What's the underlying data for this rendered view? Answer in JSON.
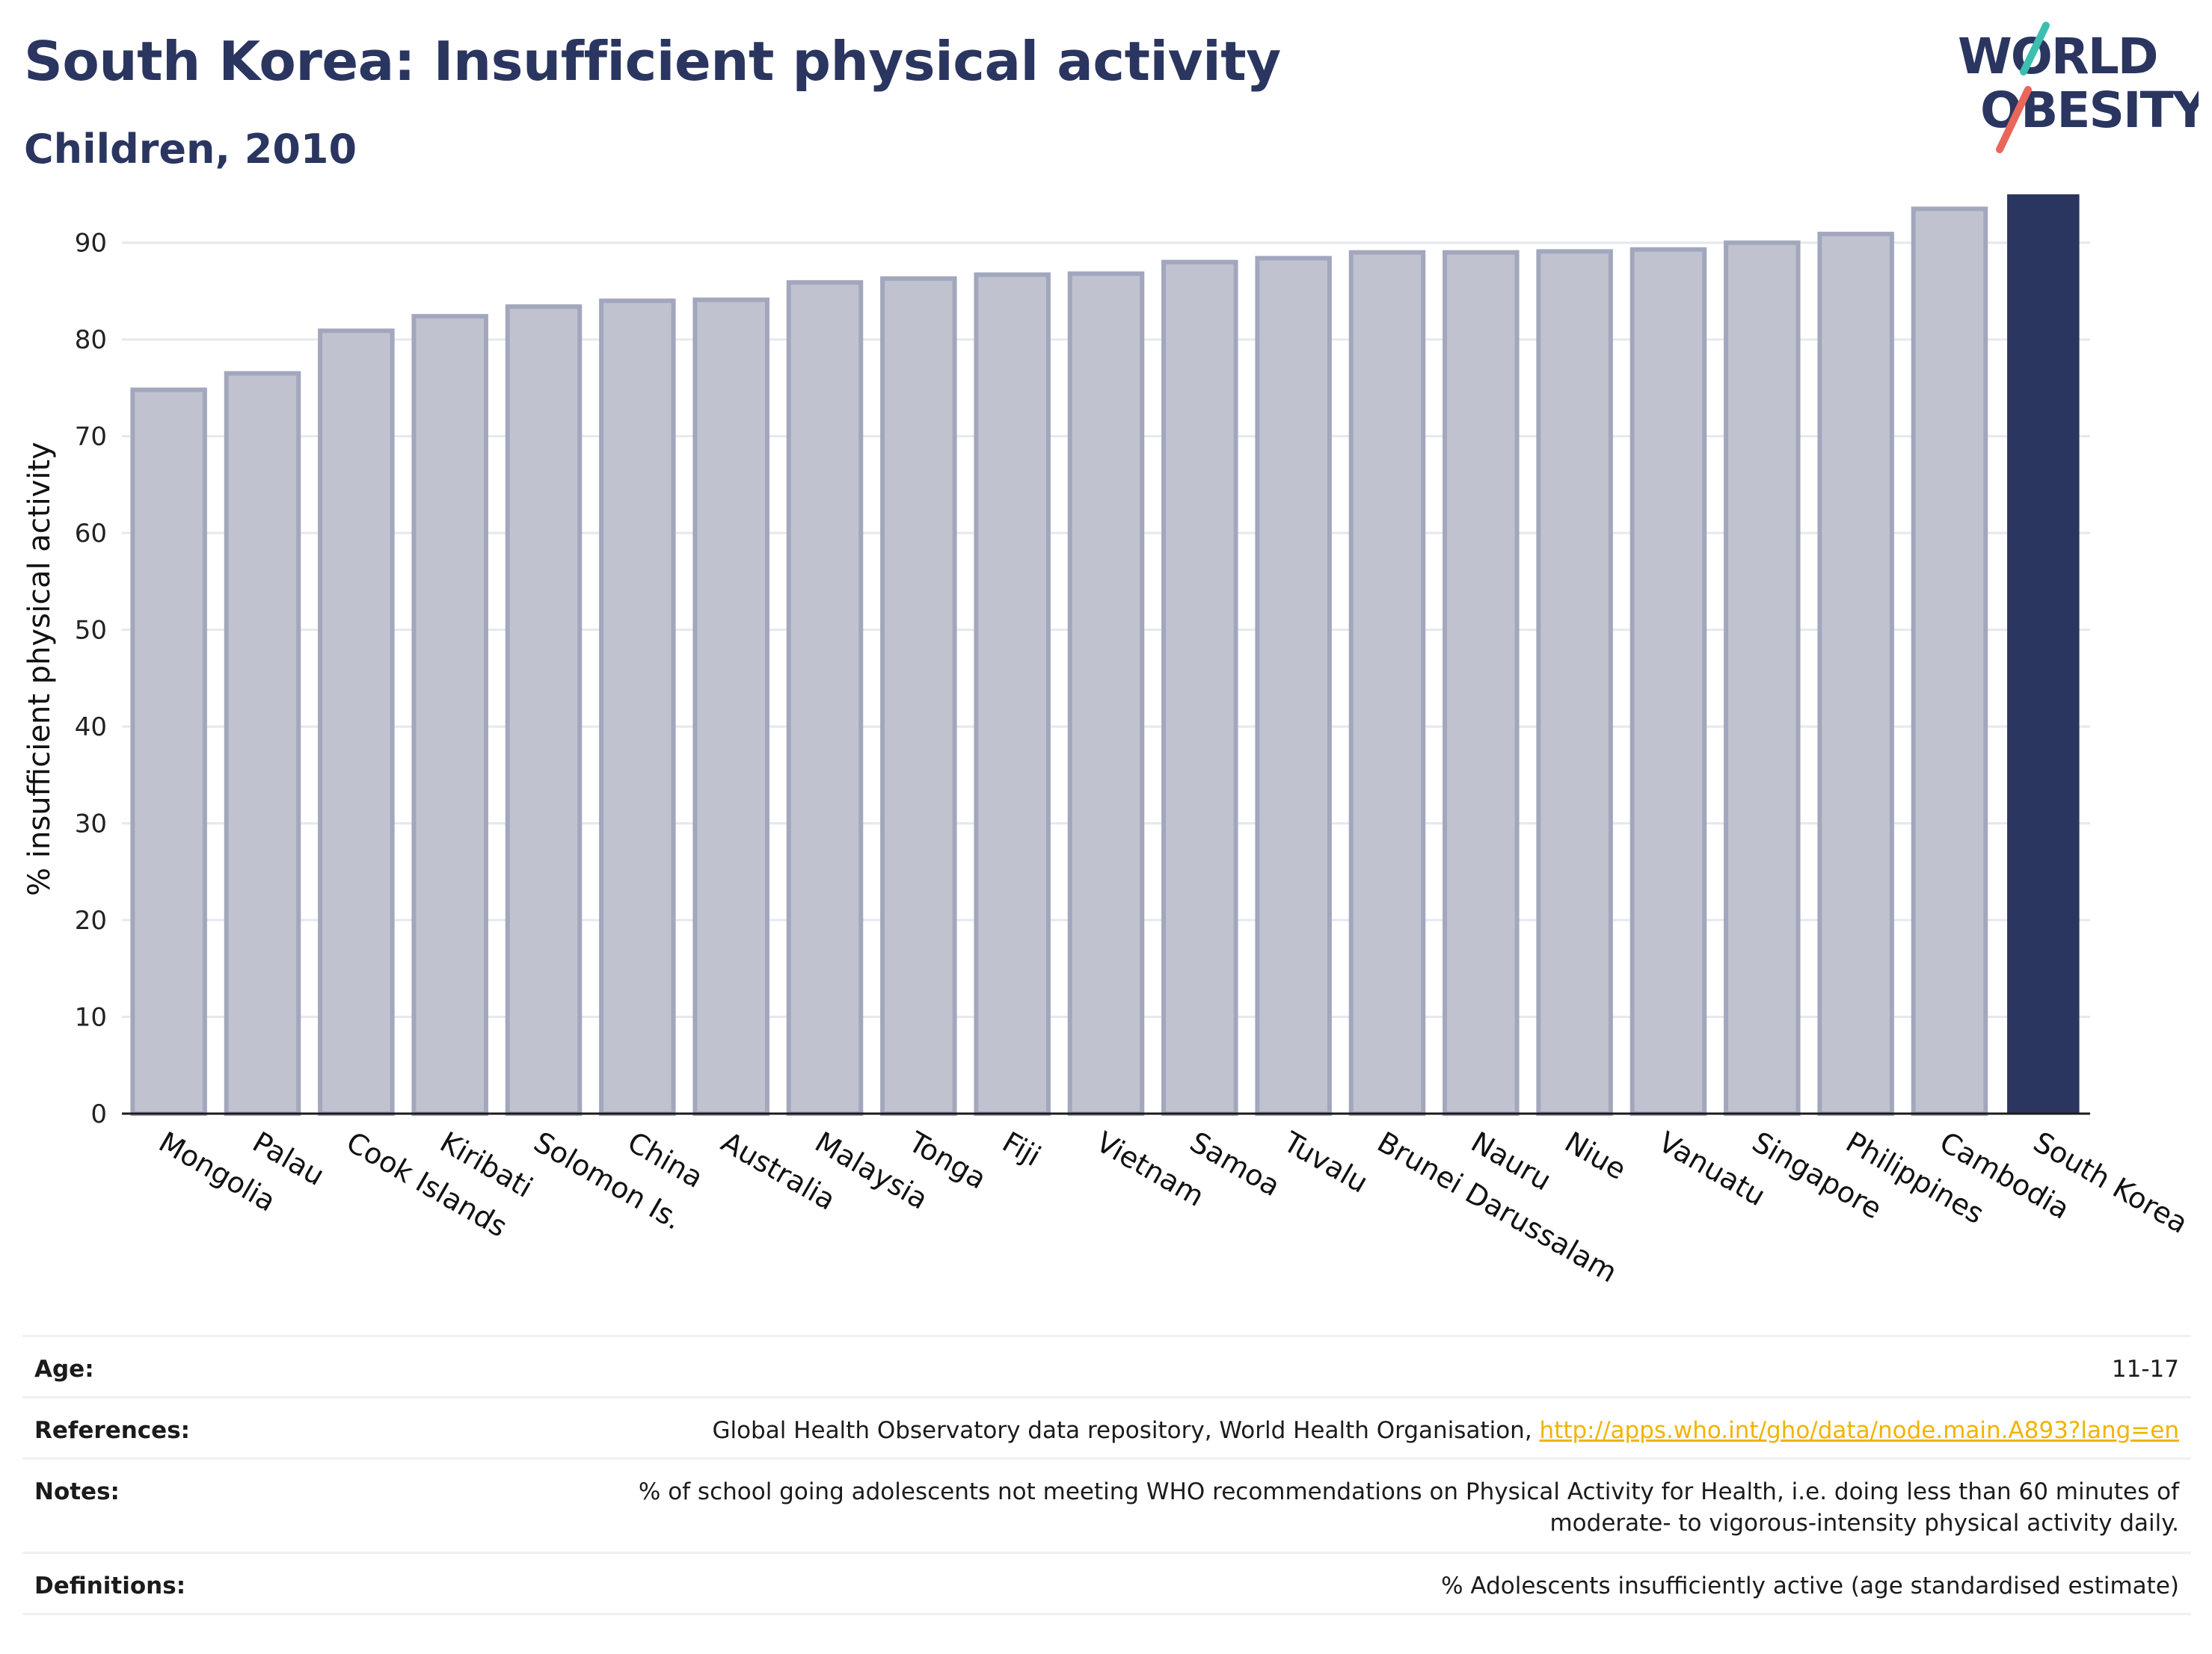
{
  "header": {
    "title": "South Korea: Insufficient physical activity",
    "subtitle": "Children, 2010"
  },
  "logo": {
    "line1": "WORLD",
    "line2": "OBESITY",
    "colors": {
      "text": "#2a3560",
      "teal": "#3cbfb0",
      "coral": "#e8675a"
    }
  },
  "chart_data": {
    "type": "bar",
    "title": "",
    "xlabel": "",
    "ylabel": "% insufficient physical activity",
    "ylim": [
      0,
      95
    ],
    "yticks": [
      0,
      10,
      20,
      30,
      40,
      50,
      60,
      70,
      80,
      90
    ],
    "grid": true,
    "categories": [
      "Mongolia",
      "Palau",
      "Cook Islands",
      "Kiribati",
      "Solomon Is.",
      "China",
      "Australia",
      "Malaysia",
      "Tonga",
      "Fiji",
      "Vietnam",
      "Samoa",
      "Tuvalu",
      "Brunei Darussalam",
      "Nauru",
      "Niue",
      "Vanuatu",
      "Singapore",
      "Philippines",
      "Cambodia",
      "South Korea"
    ],
    "values": [
      74.8,
      76.5,
      80.9,
      82.4,
      83.4,
      84.0,
      84.1,
      85.9,
      86.3,
      86.7,
      86.8,
      88.0,
      88.4,
      89.0,
      89.0,
      89.1,
      89.3,
      90.0,
      90.9,
      93.5,
      95.0
    ],
    "highlight": "South Korea",
    "colors": {
      "bar": "#c0c3cf",
      "bar_edge": "#a2a7bd",
      "highlight": "#2a3560"
    }
  },
  "info": {
    "age_label": "Age:",
    "age_value": "11-17",
    "references_label": "References:",
    "references_text": "Global Health Observatory data repository, World Health Organisation, ",
    "references_link": "http://apps.who.int/gho/data/node.main.A893?lang=en",
    "notes_label": "Notes:",
    "notes_line1": "% of school going adolescents not meeting WHO recommendations on Physical Activity for Health, i.e. doing less than 60 minutes of",
    "notes_line2": "moderate- to vigorous-intensity physical activity daily.",
    "definitions_label": "Definitions:",
    "definitions_value": "% Adolescents insufficiently active (age standardised estimate)"
  }
}
